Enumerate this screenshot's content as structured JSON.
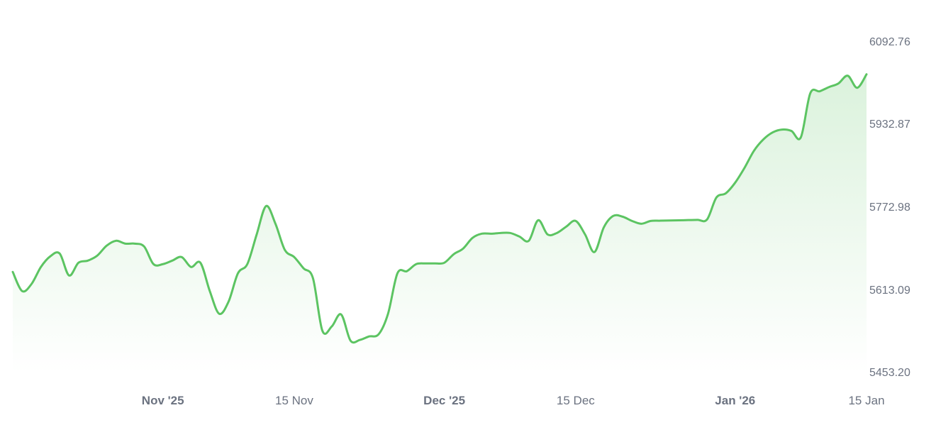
{
  "chart_data": {
    "type": "area",
    "title": "",
    "xlabel": "",
    "ylabel": "",
    "color": "#5cc462",
    "fill_color": "#e3f5e3",
    "grid": false,
    "legend": "none",
    "y_axis_position": "right",
    "ylim": [
      5453.2,
      6092.76
    ],
    "y_ticks": [
      "6092.76",
      "5932.87",
      "5772.98",
      "5613.09",
      "5453.20"
    ],
    "x_ticks": [
      {
        "label": "Nov '25",
        "date": "2025-11-01",
        "bold": true
      },
      {
        "label": "15 Nov",
        "date": "2025-11-15",
        "bold": false
      },
      {
        "label": "Dec '25",
        "date": "2025-12-01",
        "bold": true
      },
      {
        "label": "15 Dec",
        "date": "2025-12-15",
        "bold": false
      },
      {
        "label": "Jan '26",
        "date": "2026-01-01",
        "bold": true
      },
      {
        "label": "15 Jan",
        "date": "2026-01-15",
        "bold": false
      }
    ],
    "series": [
      {
        "x": [
          "2025-10-16",
          "2025-10-17",
          "2025-10-18",
          "2025-10-19",
          "2025-10-20",
          "2025-10-21",
          "2025-10-22",
          "2025-10-23",
          "2025-10-24",
          "2025-10-25",
          "2025-10-26",
          "2025-10-27",
          "2025-10-28",
          "2025-10-29",
          "2025-10-30",
          "2025-10-31",
          "2025-11-01",
          "2025-11-02",
          "2025-11-03",
          "2025-11-04",
          "2025-11-05",
          "2025-11-06",
          "2025-11-07",
          "2025-11-08",
          "2025-11-09",
          "2025-11-10",
          "2025-11-11",
          "2025-11-12",
          "2025-11-13",
          "2025-11-14",
          "2025-11-15",
          "2025-11-16",
          "2025-11-17",
          "2025-11-18",
          "2025-11-19",
          "2025-11-20",
          "2025-11-21",
          "2025-11-22",
          "2025-11-23",
          "2025-11-24",
          "2025-11-25",
          "2025-11-26",
          "2025-11-27",
          "2025-11-28",
          "2025-11-29",
          "2025-11-30",
          "2025-12-01",
          "2025-12-02",
          "2025-12-03",
          "2025-12-04",
          "2025-12-05",
          "2025-12-06",
          "2025-12-07",
          "2025-12-08",
          "2025-12-09",
          "2025-12-10",
          "2025-12-11",
          "2025-12-12",
          "2025-12-13",
          "2025-12-14",
          "2025-12-15",
          "2025-12-16",
          "2025-12-17",
          "2025-12-18",
          "2025-12-19",
          "2025-12-20",
          "2025-12-21",
          "2025-12-22",
          "2025-12-23",
          "2025-12-24",
          "2025-12-25",
          "2025-12-26",
          "2025-12-27",
          "2025-12-28",
          "2025-12-29",
          "2025-12-30",
          "2025-12-31",
          "2026-01-01",
          "2026-01-02",
          "2026-01-03",
          "2026-01-04",
          "2026-01-05",
          "2026-01-06",
          "2026-01-07",
          "2026-01-08",
          "2026-01-09",
          "2026-01-10",
          "2026-01-11",
          "2026-01-12",
          "2026-01-13",
          "2026-01-14",
          "2026-01-15"
        ],
        "y": [
          5649.1,
          5612.1,
          5625.8,
          5658.7,
          5679.3,
          5684.7,
          5642.3,
          5666.9,
          5671.0,
          5680.6,
          5699.8,
          5709.4,
          5703.9,
          5703.9,
          5698.4,
          5664.2,
          5664.2,
          5671.0,
          5677.9,
          5658.7,
          5666.9,
          5612.1,
          5568.3,
          5591.6,
          5646.4,
          5664.2,
          5721.7,
          5776.5,
          5742.3,
          5691.6,
          5677.9,
          5656.0,
          5636.8,
          5535.4,
          5543.6,
          5566.9,
          5516.2,
          5517.6,
          5524.4,
          5528.6,
          5568.3,
          5646.4,
          5650.5,
          5664.2,
          5665.6,
          5665.6,
          5666.9,
          5683.4,
          5694.3,
          5714.9,
          5723.1,
          5723.1,
          5724.5,
          5724.5,
          5717.6,
          5709.4,
          5749.1,
          5721.7,
          5724.5,
          5736.8,
          5747.8,
          5721.7,
          5687.5,
          5735.4,
          5757.4,
          5756.0,
          5747.8,
          5742.3,
          5747.8,
          5748.2,
          5748.6,
          5749.0,
          5749.4,
          5749.8,
          5750.5,
          5793.0,
          5801.2,
          5821.8,
          5850.5,
          5883.4,
          5905.3,
          5919.0,
          5924.5,
          5921.8,
          5909.4,
          5994.4,
          5998.5,
          6006.7,
          6013.6,
          6028.6,
          6005.3,
          6031.4
        ]
      }
    ]
  }
}
